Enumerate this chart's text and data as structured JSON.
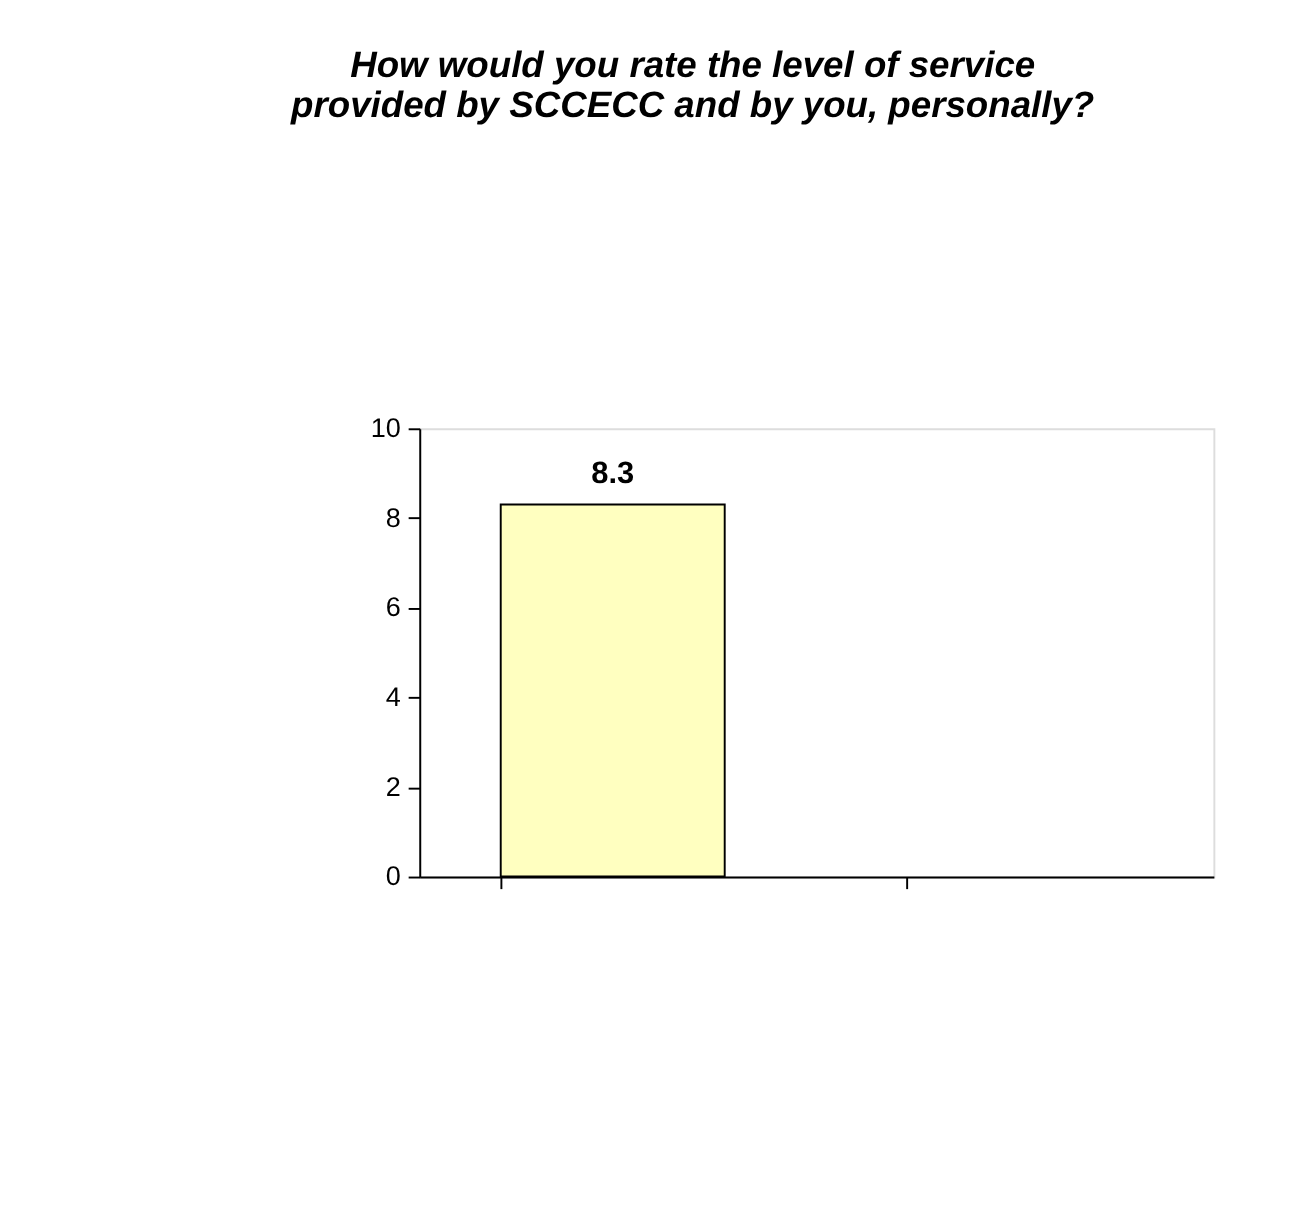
{
  "chart_data": {
    "type": "bar",
    "title": [
      "How would you rate the level of service",
      "provided by SCCECC and by you, personally?"
    ],
    "categories": [
      null,
      null
    ],
    "values": [
      8.3,
      null
    ],
    "color": "#ffffc0",
    "ylim": [
      0,
      10
    ],
    "yticks": [
      0,
      2,
      4,
      6,
      8,
      10
    ],
    "grid": false,
    "data_labels": true,
    "tick_labels": "y"
  }
}
